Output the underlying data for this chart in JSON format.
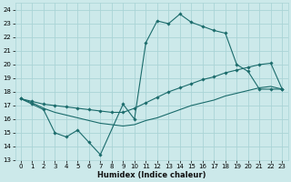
{
  "xlabel": "Humidex (Indice chaleur)",
  "bg_color": "#cce9ea",
  "grid_color": "#aad4d6",
  "line_color": "#1a6b6b",
  "xlim": [
    -0.5,
    23.5
  ],
  "ylim": [
    13,
    24.5
  ],
  "xticks": [
    0,
    1,
    2,
    3,
    4,
    5,
    6,
    7,
    8,
    9,
    10,
    11,
    12,
    13,
    14,
    15,
    16,
    17,
    18,
    19,
    20,
    21,
    22,
    23
  ],
  "yticks": [
    13,
    14,
    15,
    16,
    17,
    18,
    19,
    20,
    21,
    22,
    23,
    24
  ],
  "line_top_x": [
    0,
    1,
    2,
    3,
    4,
    5,
    6,
    7,
    9,
    10,
    11,
    12,
    13,
    14,
    15,
    16,
    17,
    18,
    19,
    20,
    21,
    22,
    23
  ],
  "line_top_y": [
    17.5,
    17.1,
    16.7,
    15.0,
    14.7,
    15.2,
    14.3,
    13.4,
    17.1,
    16.0,
    21.6,
    23.2,
    23.0,
    23.7,
    23.1,
    22.8,
    22.5,
    22.3,
    20.0,
    19.5,
    18.2,
    18.2,
    18.2
  ],
  "line_mid_x": [
    0,
    1,
    2,
    3,
    4,
    5,
    6,
    7,
    8,
    9,
    10,
    11,
    12,
    13,
    14,
    15,
    16,
    17,
    18,
    19,
    20,
    21,
    22,
    23
  ],
  "line_mid_y": [
    17.5,
    17.3,
    17.1,
    17.0,
    16.9,
    16.8,
    16.7,
    16.6,
    16.5,
    16.5,
    16.8,
    17.2,
    17.6,
    18.0,
    18.3,
    18.6,
    18.9,
    19.1,
    19.4,
    19.6,
    19.8,
    20.0,
    20.1,
    18.2
  ],
  "line_bot_x": [
    0,
    1,
    2,
    3,
    4,
    5,
    6,
    7,
    8,
    9,
    10,
    11,
    12,
    13,
    14,
    15,
    16,
    17,
    18,
    19,
    20,
    21,
    22,
    23
  ],
  "line_bot_y": [
    17.5,
    17.2,
    16.8,
    16.5,
    16.3,
    16.1,
    15.9,
    15.7,
    15.6,
    15.5,
    15.6,
    15.9,
    16.1,
    16.4,
    16.7,
    17.0,
    17.2,
    17.4,
    17.7,
    17.9,
    18.1,
    18.3,
    18.4,
    18.2
  ]
}
